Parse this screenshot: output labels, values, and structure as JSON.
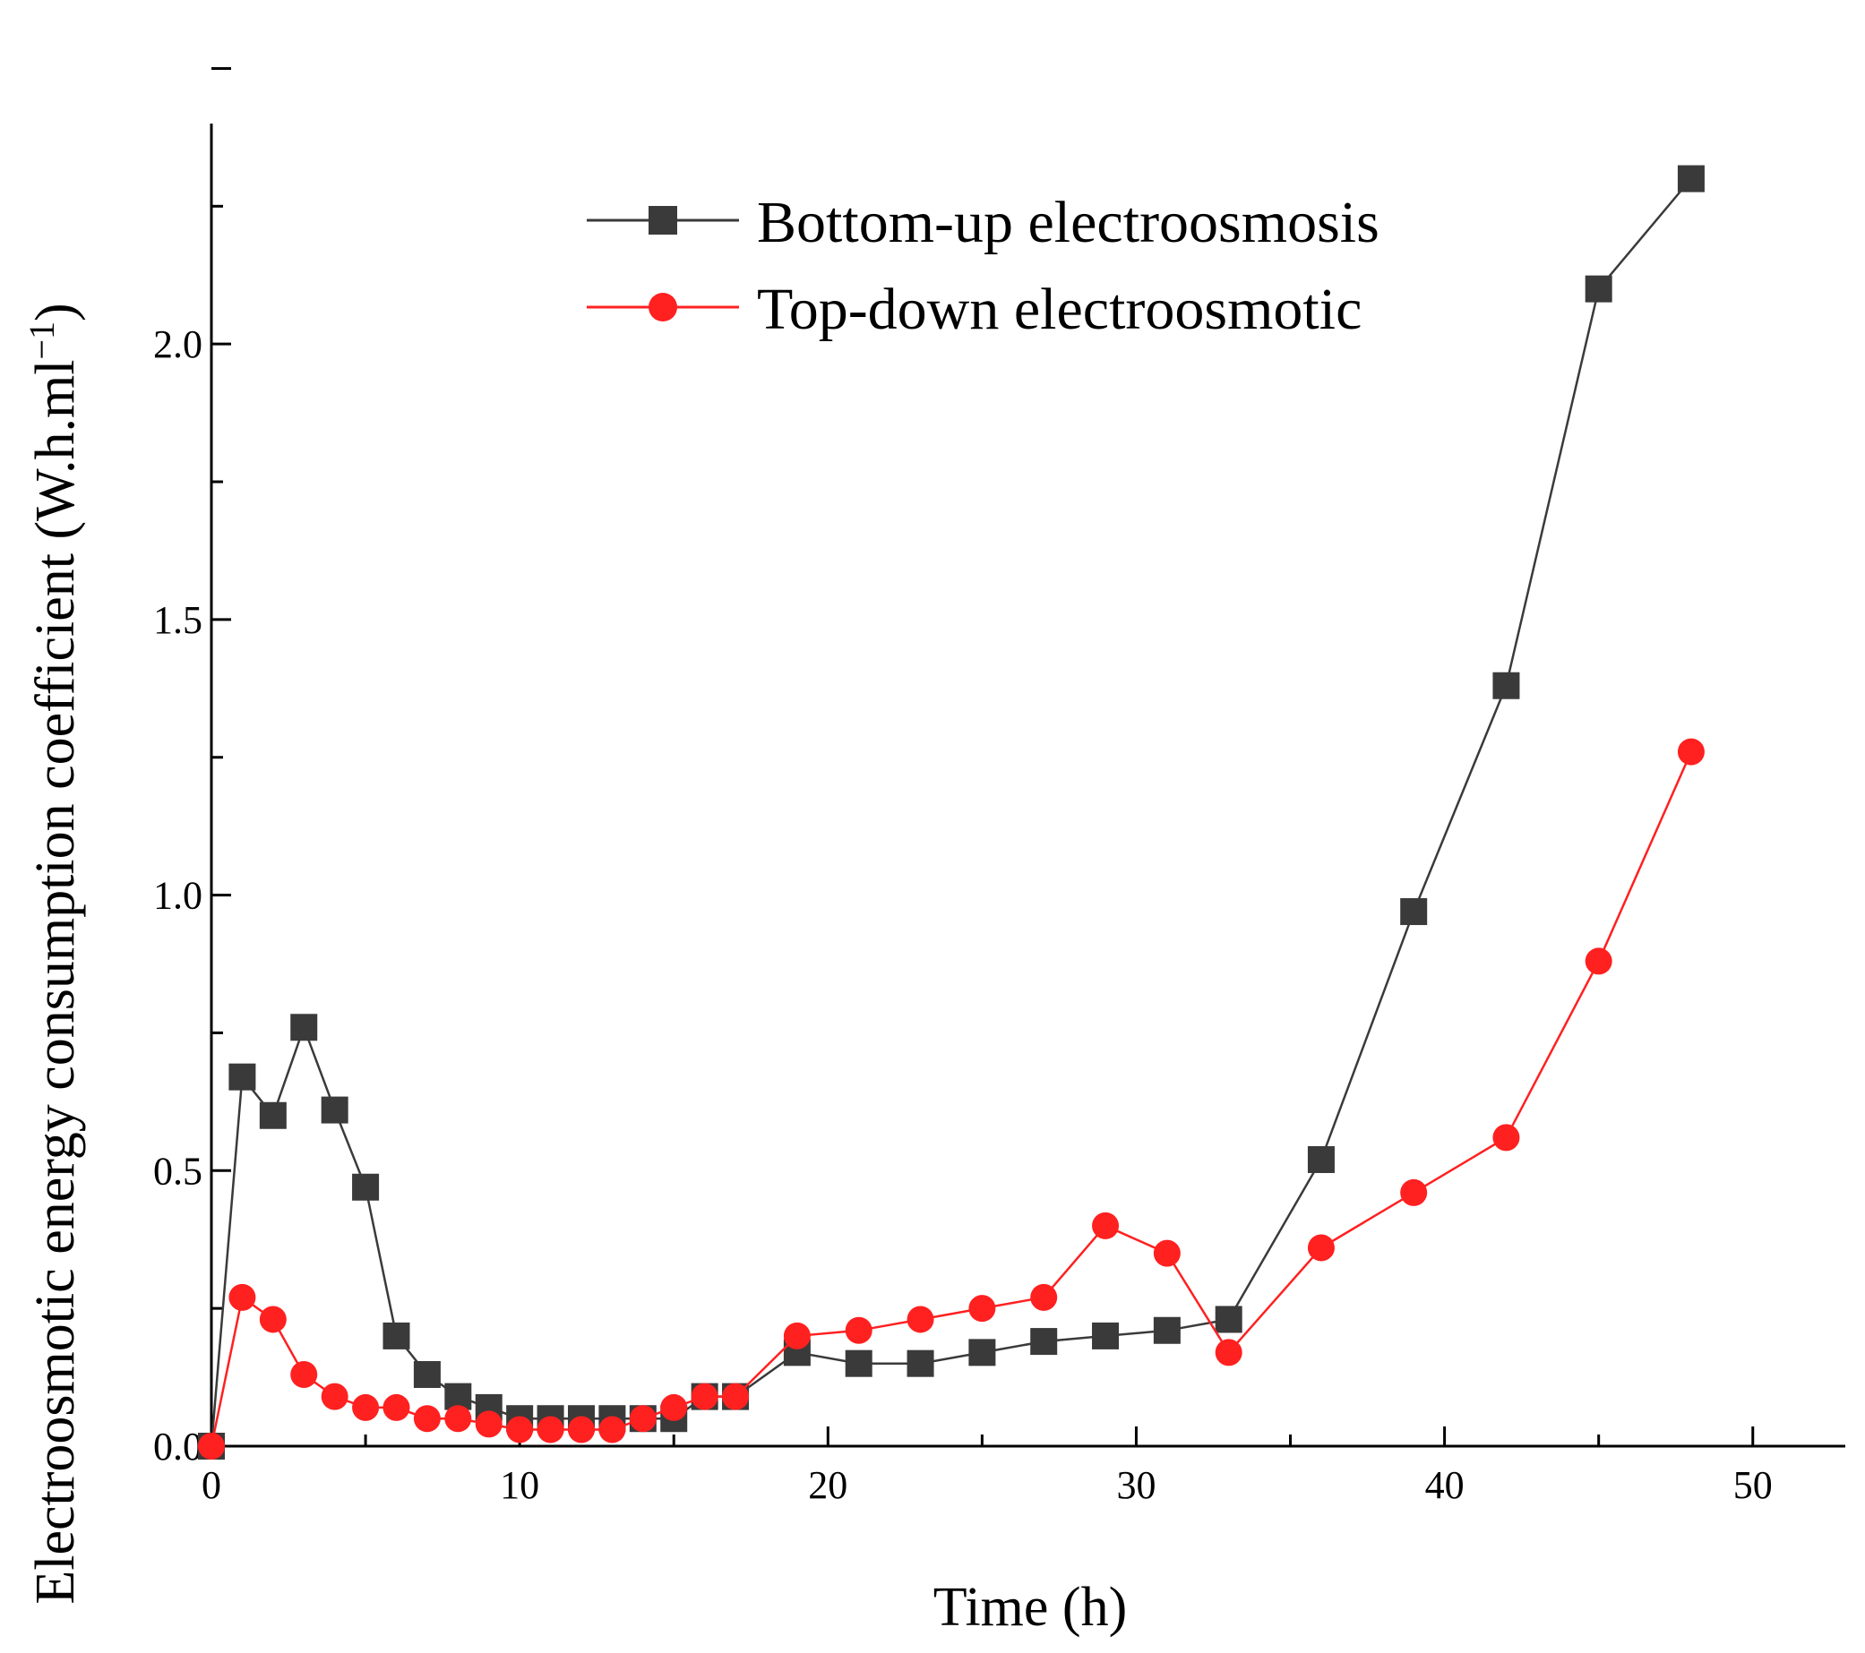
{
  "chart_data": {
    "type": "line",
    "title": "",
    "xlabel": "Time (h)",
    "ylabel": "Electroosmotic energy consumption coefficient (W.h.ml",
    "ylabel_superscript": "−1",
    "ylabel_close": ")",
    "xlim": [
      0,
      53
    ],
    "ylim": [
      0,
      2.4
    ],
    "xticks": [
      0,
      10,
      20,
      30,
      40,
      50
    ],
    "xtick_labels": [
      "0",
      "10",
      "20",
      "30",
      "40",
      "50"
    ],
    "yticks": [
      0.0,
      0.5,
      1.0,
      1.5,
      2.0
    ],
    "ytick_labels": [
      "0.0",
      "0.5",
      "1.0",
      "1.5",
      "2.0"
    ],
    "grid": false,
    "legend_position": "top-center",
    "series": [
      {
        "name": "Bottom-up electroosmosis",
        "color": "#3a3a3a",
        "marker": "square",
        "x": [
          0,
          1,
          2,
          3,
          4,
          5,
          6,
          7,
          8,
          9,
          10,
          11,
          12,
          13,
          14,
          15,
          16,
          17,
          19,
          21,
          23,
          25,
          27,
          29,
          31,
          33,
          36,
          39,
          42,
          45,
          48
        ],
        "y": [
          0.0,
          0.67,
          0.6,
          0.76,
          0.61,
          0.47,
          0.2,
          0.13,
          0.09,
          0.07,
          0.05,
          0.05,
          0.05,
          0.05,
          0.05,
          0.05,
          0.09,
          0.09,
          0.17,
          0.15,
          0.15,
          0.17,
          0.19,
          0.2,
          0.21,
          0.23,
          0.52,
          0.97,
          1.38,
          2.1,
          2.3
        ]
      },
      {
        "name": "Top-down electroosmotic",
        "color": "#ff2020",
        "marker": "circle",
        "x": [
          0,
          1,
          2,
          3,
          4,
          5,
          6,
          7,
          8,
          9,
          10,
          11,
          12,
          13,
          14,
          15,
          16,
          17,
          19,
          21,
          23,
          25,
          27,
          29,
          31,
          33,
          36,
          39,
          42,
          45,
          48
        ],
        "y": [
          0.0,
          0.27,
          0.23,
          0.13,
          0.09,
          0.07,
          0.07,
          0.05,
          0.05,
          0.04,
          0.03,
          0.03,
          0.03,
          0.03,
          0.05,
          0.07,
          0.09,
          0.09,
          0.2,
          0.21,
          0.23,
          0.25,
          0.27,
          0.4,
          0.35,
          0.17,
          0.36,
          0.46,
          0.56,
          0.88,
          1.26
        ]
      }
    ]
  }
}
